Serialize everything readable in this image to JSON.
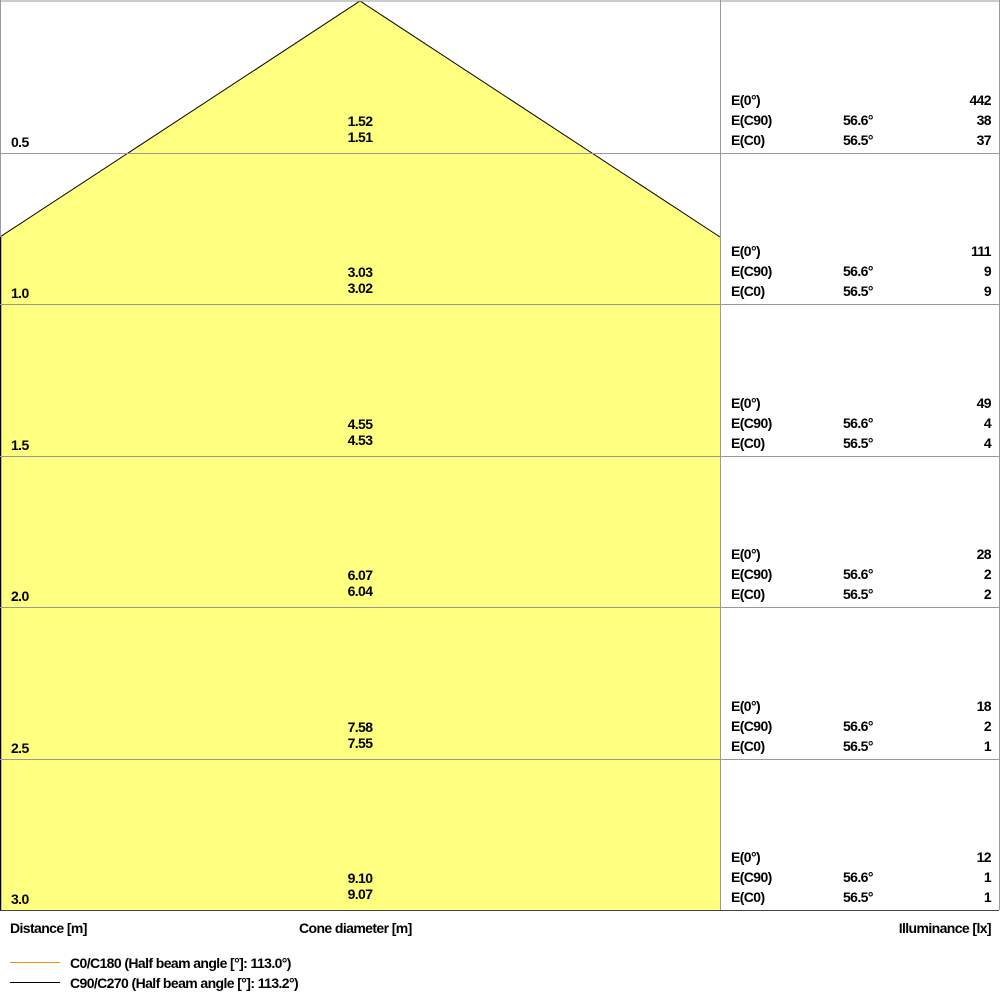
{
  "chart_data": {
    "type": "cone-diagram",
    "xlabel": "Distance [m]",
    "center_label": "Cone diameter [m]",
    "right_label": "Illuminance [lx]",
    "fill_color": "#ffff80",
    "rows": [
      {
        "distance": "0.5",
        "d_c90": "1.52",
        "d_c0": "1.51",
        "e0": "442",
        "ec90": "38",
        "ec0": "37"
      },
      {
        "distance": "1.0",
        "d_c90": "3.03",
        "d_c0": "3.02",
        "e0": "111",
        "ec90": "9",
        "ec0": "9"
      },
      {
        "distance": "1.5",
        "d_c90": "4.55",
        "d_c0": "4.53",
        "e0": "49",
        "ec90": "4",
        "ec0": "4"
      },
      {
        "distance": "2.0",
        "d_c90": "6.07",
        "d_c0": "6.04",
        "e0": "28",
        "ec90": "2",
        "ec0": "2"
      },
      {
        "distance": "2.5",
        "d_c90": "7.58",
        "d_c0": "7.55",
        "e0": "18",
        "ec90": "2",
        "ec0": "1"
      },
      {
        "distance": "3.0",
        "d_c90": "9.10",
        "d_c0": "9.07",
        "e0": "12",
        "ec90": "1",
        "ec0": "1"
      }
    ],
    "e_labels": {
      "e0": "E(0°)",
      "ec90": "E(C90)",
      "ec0": "E(C0)"
    },
    "angles": {
      "c90": "56.6°",
      "c0": "56.5°"
    },
    "legend": [
      {
        "label": "C0/C180 (Half beam angle [°]: 113.0°)",
        "color": "#ff8c00"
      },
      {
        "label": "C90/C270 (Half beam angle [°]: 113.2°)",
        "color": "#000000"
      }
    ]
  }
}
